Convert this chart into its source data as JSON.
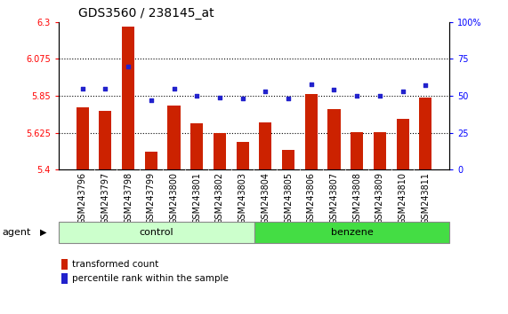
{
  "title": "GDS3560 / 238145_at",
  "categories": [
    "GSM243796",
    "GSM243797",
    "GSM243798",
    "GSM243799",
    "GSM243800",
    "GSM243801",
    "GSM243802",
    "GSM243803",
    "GSM243804",
    "GSM243805",
    "GSM243806",
    "GSM243807",
    "GSM243808",
    "GSM243809",
    "GSM243810",
    "GSM243811"
  ],
  "bar_values": [
    5.78,
    5.76,
    6.27,
    5.51,
    5.79,
    5.68,
    5.62,
    5.57,
    5.69,
    5.52,
    5.86,
    5.77,
    5.63,
    5.63,
    5.71,
    5.84
  ],
  "dot_values": [
    55,
    55,
    70,
    47,
    55,
    50,
    49,
    48,
    53,
    48,
    58,
    54,
    50,
    50,
    53,
    57
  ],
  "bar_color": "#cc2200",
  "dot_color": "#2222cc",
  "ylim_left": [
    5.4,
    6.3
  ],
  "ylim_right": [
    0,
    100
  ],
  "yticks_left": [
    5.4,
    5.625,
    5.85,
    6.075,
    6.3
  ],
  "yticks_right": [
    0,
    25,
    50,
    75,
    100
  ],
  "ytick_labels_left": [
    "5.4",
    "5.625",
    "5.85",
    "6.075",
    "6.3"
  ],
  "ytick_labels_right": [
    "0",
    "25",
    "50",
    "75",
    "100%"
  ],
  "hlines": [
    5.625,
    5.85,
    6.075
  ],
  "control_color": "#ccffcc",
  "benzene_color": "#44dd44",
  "agent_label": "agent",
  "control_label": "control",
  "benzene_label": "benzene",
  "legend_bar_label": "transformed count",
  "legend_dot_label": "percentile rank within the sample",
  "title_fontsize": 10,
  "tick_fontsize": 7,
  "bar_width": 0.55,
  "background_color": "#ffffff",
  "xticklabel_bg": "#cccccc"
}
